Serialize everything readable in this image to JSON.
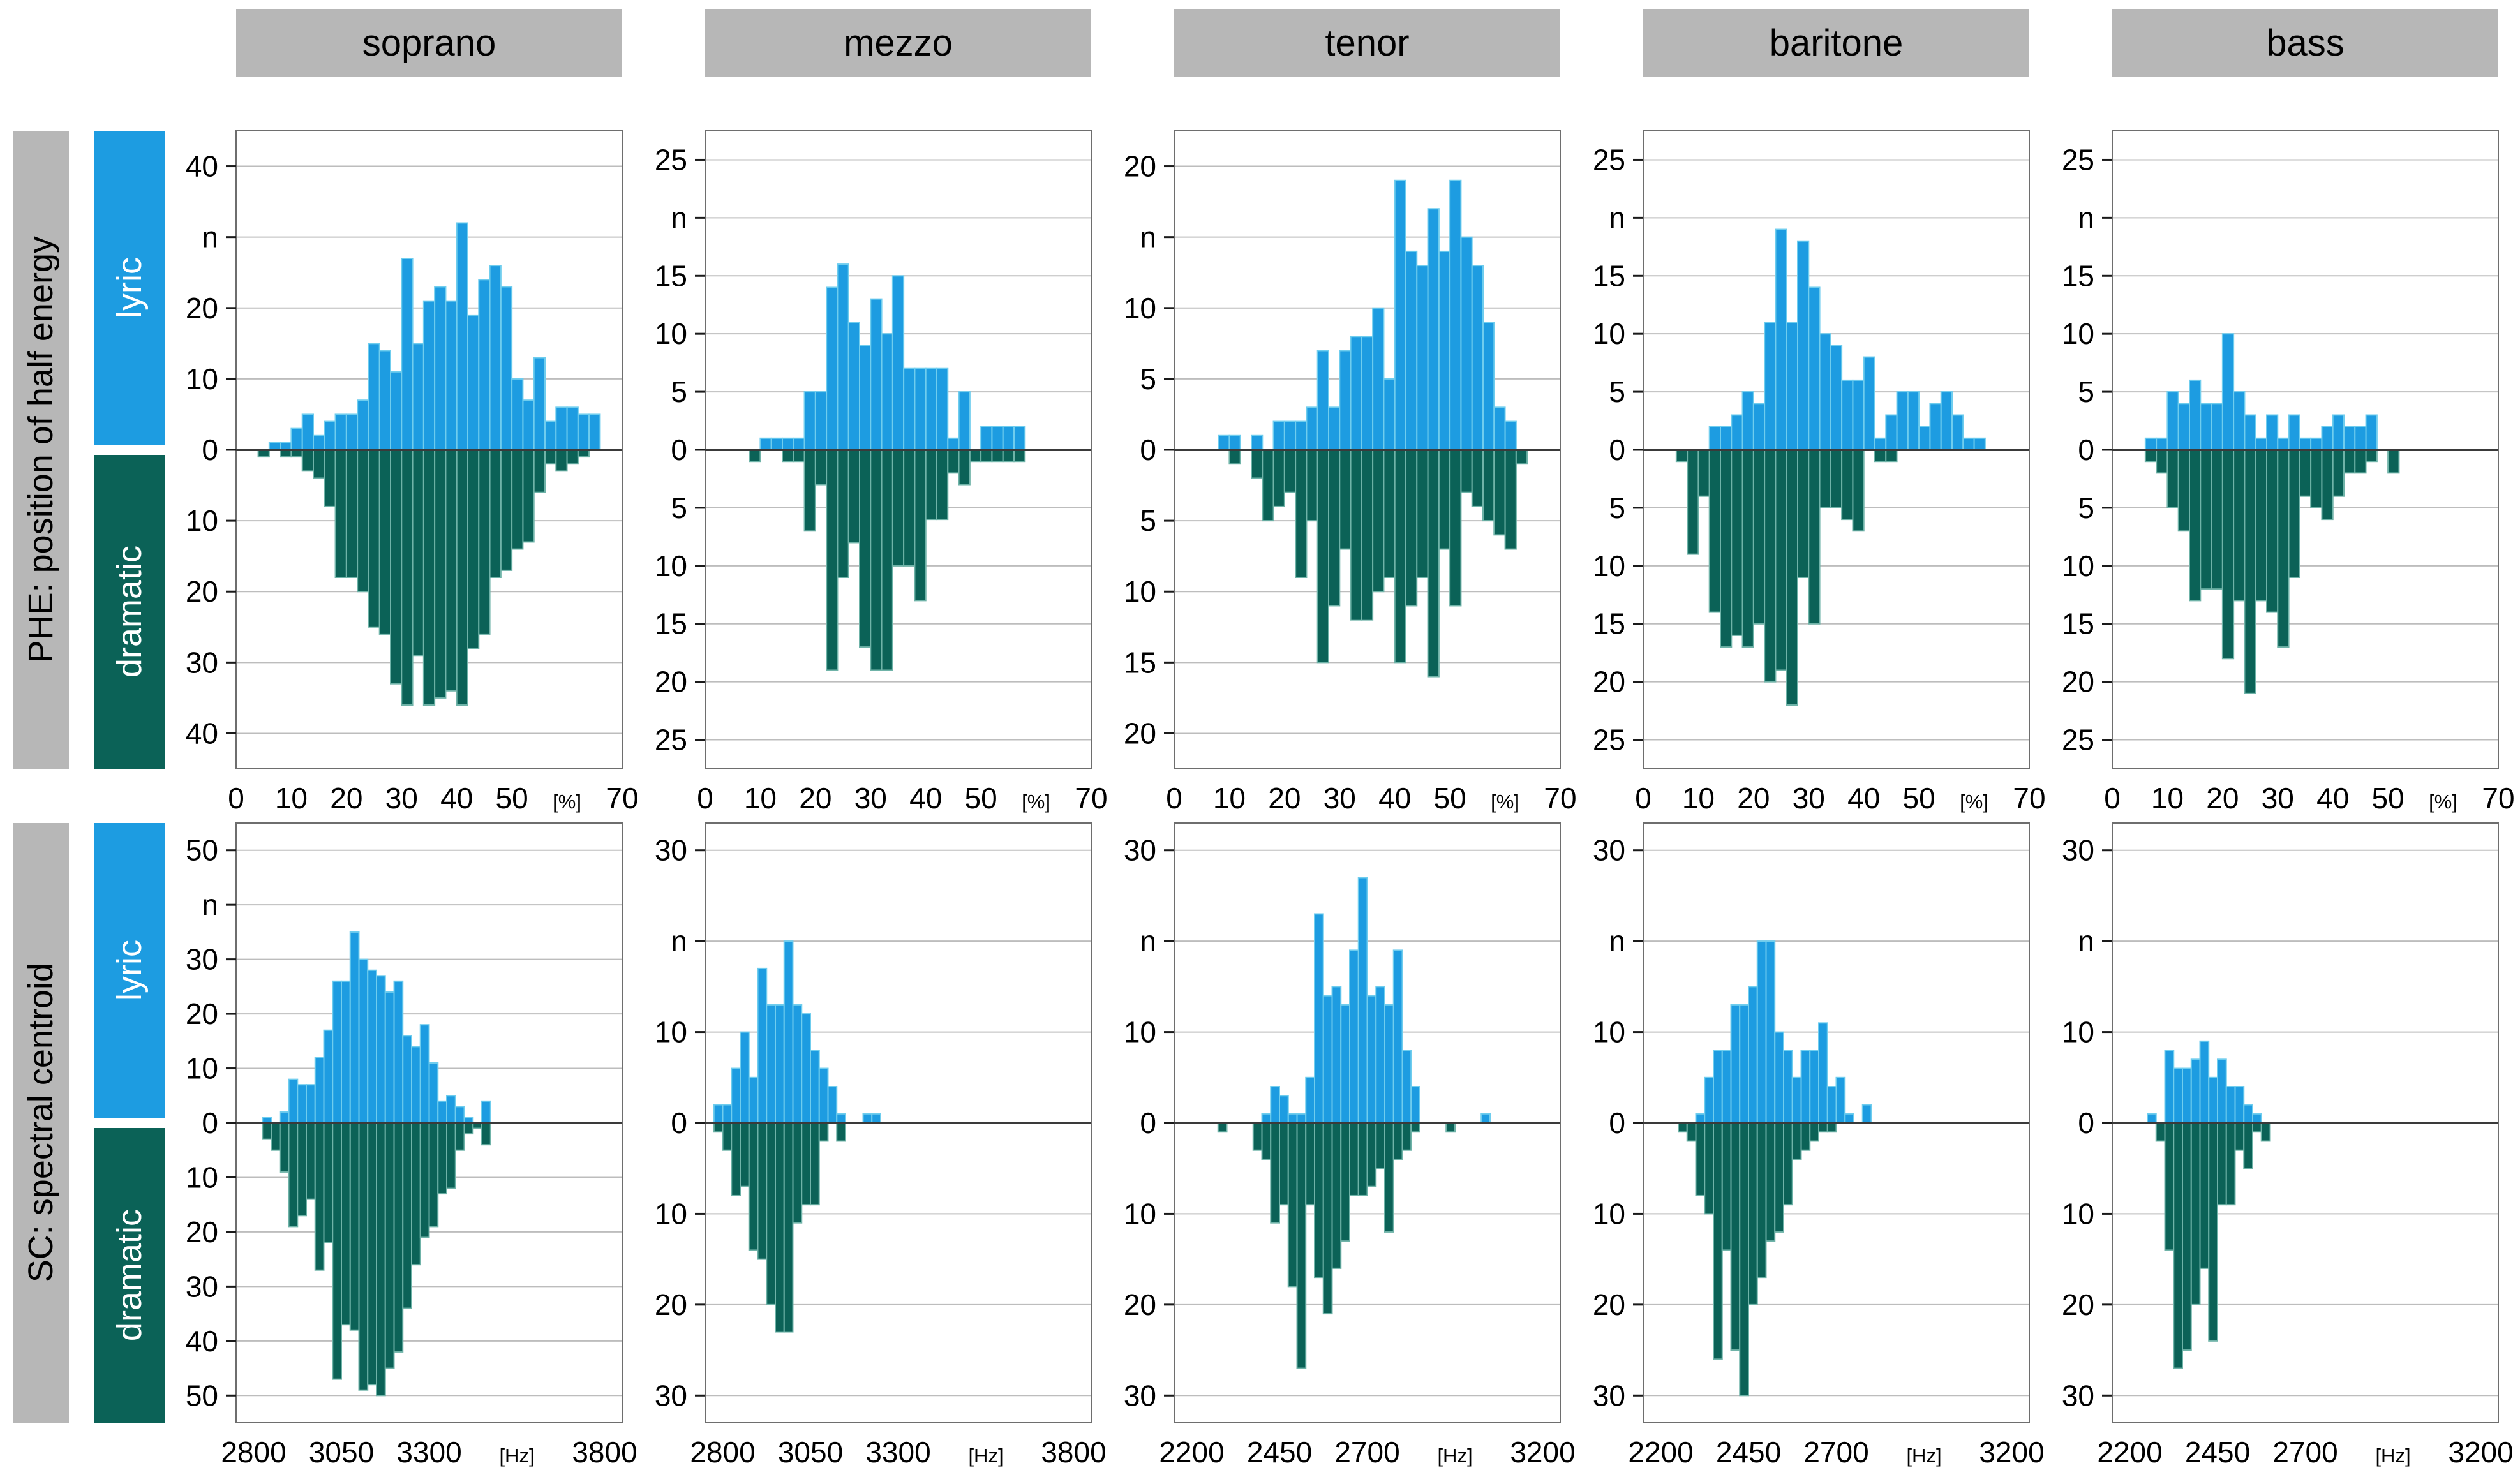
{
  "columns": [
    "soprano",
    "mezzo",
    "tenor",
    "baritone",
    "bass"
  ],
  "rows": [
    {
      "id": "PHE",
      "label": "PHE: position of half energy",
      "legend_top": "lyric",
      "legend_bottom": "dramatic"
    },
    {
      "id": "SC",
      "label": "SC: spectral centroid",
      "legend_top": "lyric",
      "legend_bottom": "dramatic"
    }
  ],
  "y_axis_letter": "n",
  "colors": {
    "lyric": "#1d9ce1",
    "lyric_edge": "#6fcdee",
    "dramatic": "#0b6257",
    "dramatic_edge": "#6fb3a8",
    "header_bg": "#b7b7b7",
    "grid": "#bdbdbd",
    "zero_line": "#3a3a3a",
    "frame": "#6e6e6e",
    "tick": "#1a1a1a",
    "text": "#000000",
    "legend_text": "#ffffff"
  },
  "chart_data": [
    {
      "type": "bar",
      "row": "PHE",
      "col": "soprano",
      "x_domain": [
        0,
        70
      ],
      "bin_width": 2,
      "bin_start": 4,
      "x_tick_vals": [
        0,
        10,
        20,
        30,
        40,
        50,
        60,
        70
      ],
      "x_tick_labels": [
        "0",
        "10",
        "20",
        "30",
        "40",
        "50",
        "[%]",
        "70"
      ],
      "y_step": 10,
      "y_max": 40,
      "y_headroom": 5,
      "series": [
        {
          "name": "lyric",
          "values": [
            0,
            1,
            1,
            3,
            5,
            2,
            4,
            5,
            5,
            7,
            15,
            14,
            11,
            27,
            15,
            21,
            23,
            21,
            32,
            19,
            24,
            26,
            23,
            10,
            7,
            13,
            4,
            6,
            6,
            5,
            5
          ]
        },
        {
          "name": "dramatic",
          "values": [
            1,
            0,
            1,
            1,
            3,
            4,
            8,
            18,
            18,
            20,
            25,
            26,
            33,
            36,
            29,
            36,
            35,
            34,
            36,
            28,
            26,
            18,
            17,
            14,
            13,
            6,
            2,
            3,
            2,
            1,
            0
          ]
        }
      ]
    },
    {
      "type": "bar",
      "row": "PHE",
      "col": "mezzo",
      "x_domain": [
        0,
        70
      ],
      "bin_width": 2,
      "bin_start": 8,
      "x_tick_vals": [
        0,
        10,
        20,
        30,
        40,
        50,
        60,
        70
      ],
      "x_tick_labels": [
        "0",
        "10",
        "20",
        "30",
        "40",
        "50",
        "[%]",
        "70"
      ],
      "y_step": 5,
      "y_max": 25,
      "y_headroom": 2.5,
      "series": [
        {
          "name": "lyric",
          "values": [
            0,
            1,
            1,
            1,
            1,
            5,
            5,
            14,
            16,
            11,
            9,
            13,
            10,
            15,
            7,
            7,
            7,
            7,
            1,
            5,
            0,
            2,
            2,
            2,
            2
          ]
        },
        {
          "name": "dramatic",
          "values": [
            1,
            0,
            0,
            1,
            1,
            7,
            3,
            19,
            11,
            8,
            17,
            19,
            19,
            10,
            10,
            13,
            6,
            6,
            2,
            3,
            1,
            1,
            1,
            1,
            1
          ]
        }
      ]
    },
    {
      "type": "bar",
      "row": "PHE",
      "col": "tenor",
      "x_domain": [
        0,
        70
      ],
      "bin_width": 2,
      "bin_start": 8,
      "x_tick_vals": [
        0,
        10,
        20,
        30,
        40,
        50,
        60,
        70
      ],
      "x_tick_labels": [
        "0",
        "10",
        "20",
        "30",
        "40",
        "50",
        "[%]",
        "70"
      ],
      "y_step": 5,
      "y_max": 20,
      "y_headroom": 2.5,
      "series": [
        {
          "name": "lyric",
          "values": [
            1,
            1,
            0,
            1,
            0,
            2,
            2,
            2,
            3,
            7,
            3,
            7,
            8,
            8,
            10,
            5,
            19,
            14,
            13,
            17,
            14,
            19,
            15,
            13,
            9,
            3,
            2,
            0
          ]
        },
        {
          "name": "dramatic",
          "values": [
            0,
            1,
            0,
            2,
            5,
            4,
            3,
            9,
            5,
            15,
            11,
            7,
            12,
            12,
            10,
            9,
            15,
            11,
            9,
            16,
            7,
            11,
            3,
            4,
            5,
            6,
            7,
            1
          ]
        }
      ]
    },
    {
      "type": "bar",
      "row": "PHE",
      "col": "baritone",
      "x_domain": [
        0,
        70
      ],
      "bin_width": 2,
      "bin_start": 6,
      "x_tick_vals": [
        0,
        10,
        20,
        30,
        40,
        50,
        60,
        70
      ],
      "x_tick_labels": [
        "0",
        "10",
        "20",
        "30",
        "40",
        "50",
        "[%]",
        "70"
      ],
      "y_step": 5,
      "y_max": 25,
      "y_headroom": 2.5,
      "series": [
        {
          "name": "lyric",
          "values": [
            0,
            0,
            0,
            2,
            2,
            3,
            5,
            4,
            11,
            19,
            11,
            18,
            14,
            10,
            9,
            6,
            6,
            8,
            1,
            3,
            5,
            5,
            2,
            4,
            5,
            3,
            1,
            1
          ]
        },
        {
          "name": "dramatic",
          "values": [
            1,
            9,
            4,
            14,
            17,
            16,
            17,
            15,
            20,
            19,
            22,
            11,
            15,
            5,
            5,
            6,
            7,
            0,
            1,
            1,
            0,
            0,
            0,
            0,
            0,
            0,
            0,
            0
          ]
        }
      ]
    },
    {
      "type": "bar",
      "row": "PHE",
      "col": "bass",
      "x_domain": [
        0,
        70
      ],
      "bin_width": 2,
      "bin_start": 6,
      "x_tick_vals": [
        0,
        10,
        20,
        30,
        40,
        50,
        60,
        70
      ],
      "x_tick_labels": [
        "0",
        "10",
        "20",
        "30",
        "40",
        "50",
        "[%]",
        "70"
      ],
      "y_step": 5,
      "y_max": 25,
      "y_headroom": 2.5,
      "series": [
        {
          "name": "lyric",
          "values": [
            1,
            1,
            5,
            4,
            6,
            4,
            4,
            10,
            5,
            3,
            1,
            3,
            1,
            3,
            1,
            1,
            2,
            3,
            2,
            2,
            3,
            0,
            0
          ]
        },
        {
          "name": "dramatic",
          "values": [
            1,
            2,
            5,
            7,
            13,
            12,
            12,
            18,
            13,
            21,
            13,
            14,
            17,
            11,
            4,
            5,
            6,
            4,
            2,
            2,
            1,
            0,
            2
          ]
        }
      ]
    },
    {
      "type": "bar",
      "row": "SC",
      "col": "soprano",
      "x_domain": [
        2750,
        3850
      ],
      "bin_width": 25,
      "bin_start": 2825,
      "x_tick_vals": [
        2800,
        3050,
        3300,
        3550,
        3800
      ],
      "x_tick_labels": [
        "2800",
        "3050",
        "3300",
        "[Hz]",
        "3800"
      ],
      "y_step": 10,
      "y_max": 50,
      "y_headroom": 5,
      "series": [
        {
          "name": "lyric",
          "values": [
            1,
            0,
            2,
            8,
            7,
            7,
            12,
            17,
            26,
            26,
            35,
            30,
            28,
            27,
            24,
            26,
            16,
            14,
            18,
            11,
            4,
            5,
            3,
            1,
            0,
            4
          ]
        },
        {
          "name": "dramatic",
          "values": [
            3,
            5,
            9,
            19,
            17,
            14,
            27,
            22,
            47,
            37,
            38,
            49,
            48,
            50,
            45,
            42,
            34,
            26,
            21,
            19,
            13,
            12,
            5,
            2,
            1,
            4
          ]
        }
      ]
    },
    {
      "type": "bar",
      "row": "SC",
      "col": "mezzo",
      "x_domain": [
        2750,
        3850
      ],
      "bin_width": 25,
      "bin_start": 2775,
      "x_tick_vals": [
        2800,
        3050,
        3300,
        3550,
        3800
      ],
      "x_tick_labels": [
        "2800",
        "3050",
        "3300",
        "[Hz]",
        "3800"
      ],
      "y_step": 10,
      "y_max": 30,
      "y_headroom": 3,
      "series": [
        {
          "name": "lyric",
          "values": [
            2,
            2,
            6,
            10,
            5,
            17,
            13,
            13,
            20,
            13,
            12,
            8,
            6,
            4,
            1,
            0,
            0,
            1,
            1
          ]
        },
        {
          "name": "dramatic",
          "values": [
            1,
            3,
            8,
            7,
            14,
            15,
            20,
            23,
            23,
            11,
            9,
            9,
            2,
            0,
            2,
            0,
            0,
            0,
            0
          ]
        }
      ]
    },
    {
      "type": "bar",
      "row": "SC",
      "col": "tenor",
      "x_domain": [
        2150,
        3250
      ],
      "bin_width": 25,
      "bin_start": 2275,
      "x_tick_vals": [
        2200,
        2450,
        2700,
        2950,
        3200
      ],
      "x_tick_labels": [
        "2200",
        "2450",
        "2700",
        "[Hz]",
        "3200"
      ],
      "y_step": 10,
      "y_max": 30,
      "y_headroom": 3,
      "series": [
        {
          "name": "lyric",
          "values": [
            0,
            0,
            0,
            0,
            0,
            1,
            4,
            3,
            1,
            1,
            5,
            23,
            14,
            15,
            13,
            19,
            27,
            14,
            15,
            13,
            19,
            8,
            4,
            0,
            0,
            0,
            0,
            0,
            0,
            0,
            1
          ]
        },
        {
          "name": "dramatic",
          "values": [
            1,
            0,
            0,
            0,
            3,
            4,
            11,
            9,
            18,
            27,
            9,
            17,
            21,
            16,
            13,
            8,
            8,
            7,
            5,
            12,
            4,
            3,
            1,
            0,
            0,
            0,
            1,
            0,
            0,
            0,
            0
          ]
        }
      ]
    },
    {
      "type": "bar",
      "row": "SC",
      "col": "baritone",
      "x_domain": [
        2150,
        3250
      ],
      "bin_width": 25,
      "bin_start": 2250,
      "x_tick_vals": [
        2200,
        2450,
        2700,
        2950,
        3200
      ],
      "x_tick_labels": [
        "2200",
        "2450",
        "2700",
        "[Hz]",
        "3200"
      ],
      "y_step": 10,
      "y_max": 30,
      "y_headroom": 3,
      "series": [
        {
          "name": "lyric",
          "values": [
            0,
            0,
            1,
            5,
            8,
            8,
            13,
            13,
            15,
            20,
            20,
            10,
            8,
            5,
            8,
            8,
            11,
            4,
            5,
            1,
            0,
            2
          ]
        },
        {
          "name": "dramatic",
          "values": [
            1,
            2,
            8,
            10,
            26,
            14,
            25,
            30,
            20,
            17,
            13,
            12,
            9,
            4,
            3,
            2,
            1,
            1,
            0,
            0,
            0,
            0
          ]
        }
      ]
    },
    {
      "type": "bar",
      "row": "SC",
      "col": "bass",
      "x_domain": [
        2150,
        3250
      ],
      "bin_width": 25,
      "bin_start": 2250,
      "x_tick_vals": [
        2200,
        2450,
        2700,
        2950,
        3200
      ],
      "x_tick_labels": [
        "2200",
        "2450",
        "2700",
        "[Hz]",
        "3200"
      ],
      "y_step": 10,
      "y_max": 30,
      "y_headroom": 3,
      "series": [
        {
          "name": "lyric",
          "values": [
            1,
            0,
            8,
            6,
            6,
            7,
            9,
            5,
            7,
            4,
            4,
            2,
            1,
            0
          ]
        },
        {
          "name": "dramatic",
          "values": [
            0,
            2,
            14,
            27,
            25,
            20,
            16,
            24,
            9,
            9,
            3,
            5,
            1,
            2
          ]
        }
      ]
    }
  ]
}
